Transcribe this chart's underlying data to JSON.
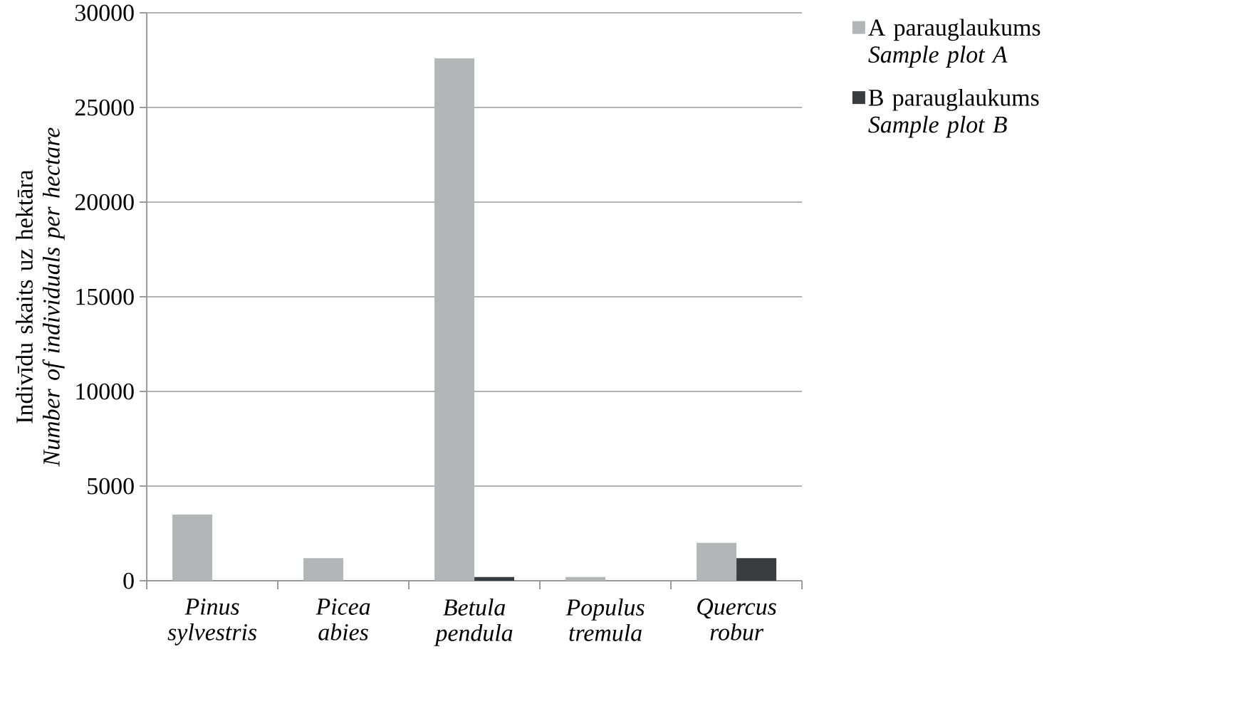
{
  "chart_data": {
    "type": "bar",
    "ylabel": "Indivīdu skaits uz hektāra *Number of individuals per hectare*",
    "categories": [
      "Pinus sylvestris",
      "Picea abies",
      "Betula pendula",
      "Populus tremula",
      "Quercus robur"
    ],
    "series": [
      {
        "name": "A parauglaukums *Sample plot A*",
        "color": "#b3b5b7",
        "values": [
          3500,
          1200,
          27600,
          200,
          2000
        ]
      },
      {
        "name": "B parauglaukums *Sample plot B*",
        "color": "#3a3d40",
        "values": [
          0,
          0,
          200,
          0,
          1200
        ]
      }
    ],
    "ylim": [
      0,
      30000
    ],
    "yticks": [
      0,
      5000,
      10000,
      15000,
      20000,
      25000,
      30000
    ],
    "grid": "y",
    "legend": "right"
  }
}
